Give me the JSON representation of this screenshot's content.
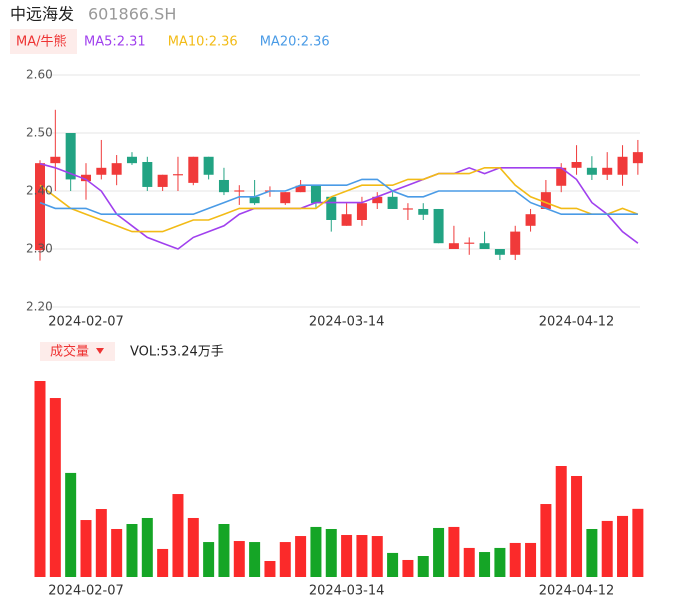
{
  "header": {
    "title": "中远海发",
    "code": "601866.SH"
  },
  "chart_data": [
    {
      "type": "candlestick",
      "legend_button": "MA/牛熊",
      "categories": [
        null,
        null,
        null,
        "2024-02-07",
        null,
        null,
        null,
        null,
        null,
        null,
        null,
        null,
        null,
        null,
        null,
        null,
        null,
        null,
        null,
        null,
        "2024-03-14",
        null,
        null,
        null,
        null,
        null,
        null,
        null,
        null,
        null,
        null,
        null,
        null,
        null,
        null,
        "2024-04-12",
        null,
        null,
        null,
        null
      ],
      "open": [
        2.298,
        2.448,
        2.5,
        2.417,
        2.428,
        2.428,
        2.459,
        2.45,
        2.407,
        2.427,
        2.414,
        2.459,
        2.419,
        2.399,
        2.39,
        2.399,
        2.379,
        2.398,
        2.409,
        2.39,
        2.34,
        2.35,
        2.379,
        2.39,
        2.368,
        2.369,
        2.369,
        2.3,
        2.309,
        2.31,
        2.3,
        2.29,
        2.34,
        2.369,
        2.409,
        2.44,
        2.44,
        2.428,
        2.428,
        2.448
      ],
      "high": [
        2.453,
        2.54,
        2.5,
        2.448,
        2.488,
        2.462,
        2.467,
        2.459,
        2.428,
        2.459,
        2.459,
        2.459,
        2.44,
        2.41,
        2.419,
        2.408,
        2.398,
        2.419,
        2.409,
        2.39,
        2.379,
        2.39,
        2.398,
        2.398,
        2.379,
        2.379,
        2.369,
        2.34,
        2.32,
        2.33,
        2.3,
        2.34,
        2.369,
        2.419,
        2.448,
        2.479,
        2.46,
        2.467,
        2.479,
        2.488
      ],
      "low": [
        2.28,
        2.4,
        2.4,
        2.385,
        2.42,
        2.41,
        2.445,
        2.4,
        2.4,
        2.4,
        2.41,
        2.42,
        2.393,
        2.376,
        2.376,
        2.39,
        2.376,
        2.398,
        2.371,
        2.33,
        2.34,
        2.34,
        2.369,
        2.369,
        2.35,
        2.35,
        2.31,
        2.3,
        2.29,
        2.3,
        2.281,
        2.281,
        2.33,
        2.369,
        2.398,
        2.428,
        2.419,
        2.419,
        2.409,
        2.428
      ],
      "close": [
        2.448,
        2.459,
        2.42,
        2.428,
        2.44,
        2.448,
        2.448,
        2.407,
        2.428,
        2.429,
        2.459,
        2.428,
        2.398,
        2.401,
        2.379,
        2.401,
        2.398,
        2.409,
        2.379,
        2.35,
        2.36,
        2.379,
        2.39,
        2.369,
        2.37,
        2.359,
        2.31,
        2.31,
        2.311,
        2.3,
        2.29,
        2.33,
        2.36,
        2.398,
        2.44,
        2.45,
        2.428,
        2.44,
        2.459,
        2.467
      ],
      "up_color": "#f03a3a",
      "down_color": "#22a383",
      "series": [
        {
          "name": "MA5:2.31",
          "color": "#a040ee",
          "values": [
            2.447,
            2.44,
            2.43,
            2.42,
            2.4,
            2.36,
            2.34,
            2.32,
            2.31,
            2.3,
            2.32,
            2.33,
            2.34,
            2.36,
            2.37,
            2.37,
            2.37,
            2.37,
            2.38,
            2.38,
            2.38,
            2.38,
            2.39,
            2.4,
            2.41,
            2.42,
            2.43,
            2.43,
            2.44,
            2.43,
            2.44,
            2.44,
            2.44,
            2.44,
            2.44,
            2.42,
            2.38,
            2.36,
            2.33,
            2.31
          ]
        },
        {
          "name": "MA10:2.36",
          "color": "#f2bb16",
          "values": [
            2.41,
            2.39,
            2.37,
            2.36,
            2.35,
            2.34,
            2.33,
            2.33,
            2.33,
            2.34,
            2.35,
            2.35,
            2.36,
            2.37,
            2.37,
            2.37,
            2.37,
            2.37,
            2.37,
            2.39,
            2.4,
            2.41,
            2.41,
            2.41,
            2.42,
            2.42,
            2.43,
            2.43,
            2.43,
            2.44,
            2.44,
            2.41,
            2.39,
            2.38,
            2.37,
            2.37,
            2.36,
            2.36,
            2.37,
            2.36
          ]
        },
        {
          "name": "MA20:2.36",
          "color": "#4a9be6",
          "values": [
            2.38,
            2.37,
            2.37,
            2.37,
            2.36,
            2.36,
            2.36,
            2.36,
            2.36,
            2.36,
            2.36,
            2.37,
            2.38,
            2.39,
            2.39,
            2.4,
            2.4,
            2.41,
            2.41,
            2.41,
            2.41,
            2.42,
            2.42,
            2.4,
            2.39,
            2.39,
            2.4,
            2.4,
            2.4,
            2.4,
            2.4,
            2.4,
            2.38,
            2.37,
            2.36,
            2.36,
            2.36,
            2.36,
            2.36,
            2.36
          ]
        }
      ],
      "ylim": [
        2.2,
        2.6
      ],
      "yticks": [
        {
          "value": 2.6,
          "label": "2.60"
        },
        {
          "value": 2.5,
          "label": "2.50"
        },
        {
          "value": 2.4,
          "label": "2.40"
        },
        {
          "value": 2.3,
          "label": "2.30"
        },
        {
          "value": 2.2,
          "label": "2.20"
        }
      ],
      "grid": true
    },
    {
      "type": "bar",
      "legend_button": "成交量",
      "label": "VOL:53.24万手",
      "categories": [
        null,
        null,
        null,
        "2024-02-07",
        null,
        null,
        null,
        null,
        null,
        null,
        null,
        null,
        null,
        null,
        null,
        null,
        null,
        null,
        null,
        null,
        "2024-03-14",
        null,
        null,
        null,
        null,
        null,
        null,
        null,
        null,
        null,
        null,
        null,
        null,
        null,
        null,
        "2024-04-12",
        null,
        null,
        null,
        null
      ],
      "values": [
        153.1,
        139.8,
        81.3,
        44.5,
        53.1,
        37.5,
        41.4,
        46.1,
        21.9,
        64.8,
        46.1,
        27.3,
        41.4,
        28.1,
        27.3,
        12.5,
        27.3,
        32.0,
        39.1,
        37.5,
        32.8,
        32.8,
        32.0,
        18.8,
        13.3,
        16.4,
        38.3,
        39.1,
        22.7,
        19.5,
        22.7,
        26.6,
        26.6,
        57.0,
        86.7,
        78.9,
        37.5,
        43.8,
        47.7,
        53.24
      ],
      "up_color": "#fb2a2a",
      "down_color": "#15a526"
    }
  ]
}
